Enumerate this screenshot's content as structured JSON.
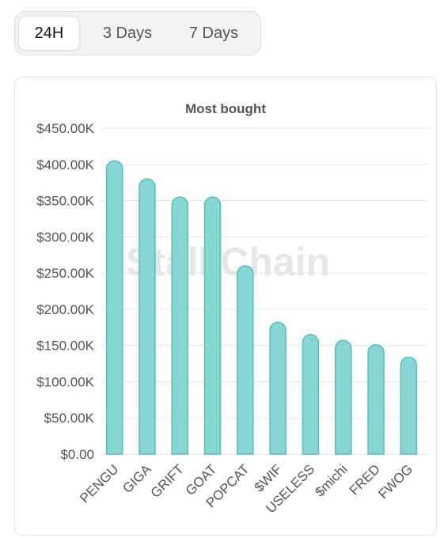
{
  "tabs": {
    "items": [
      {
        "label": "24H",
        "active": true
      },
      {
        "label": "3 Days",
        "active": false
      },
      {
        "label": "7 Days",
        "active": false
      }
    ]
  },
  "watermark": "StalkChain",
  "colors": {
    "bar_fill": "#88d6d3",
    "bar_stroke": "#4fc1bd",
    "grid": "#e6e6e6"
  },
  "chart_data": {
    "type": "bar",
    "title": "Most bought",
    "xlabel": "",
    "ylabel": "",
    "categories": [
      "PENGU",
      "GIGA",
      "GRIFT",
      "GOAT",
      "POPCAT",
      "$WIF",
      "USELESS",
      "$michi",
      "FRED",
      "FWOG"
    ],
    "values": [
      405000,
      380000,
      355000,
      355000,
      260000,
      182000,
      165000,
      157000,
      151000,
      134000
    ],
    "ylim": [
      0,
      450000
    ],
    "yticks": [
      "$0.00",
      "$50.00K",
      "$100.00K",
      "$150.00K",
      "$200.00K",
      "$250.00K",
      "$300.00K",
      "$350.00K",
      "$400.00K",
      "$450.00K"
    ],
    "grid": true,
    "legend": "none"
  }
}
